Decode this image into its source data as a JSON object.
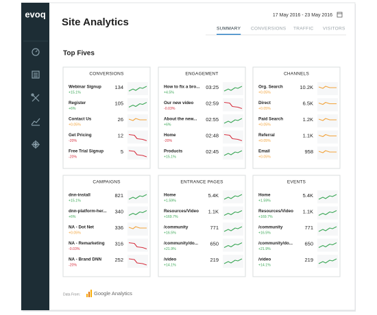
{
  "sidebar": {
    "logo": "evoq"
  },
  "header": {
    "title": "Site Analytics",
    "date_range": "17 May 2016 - 23 May 2016",
    "tabs": [
      "SUMMARY",
      "CONVERSIONS",
      "TRAFFIC",
      "VISITORS"
    ],
    "active_tab": 0
  },
  "section_title": "Top Fives",
  "panels": [
    {
      "title": "CONVERSIONS",
      "items": [
        {
          "name": "Webinar Signup",
          "value": "134",
          "change": "+15.1%",
          "color": "#3aa655"
        },
        {
          "name": "Register",
          "value": "105",
          "change": "+6%",
          "color": "#3aa655"
        },
        {
          "name": "Contact Us",
          "value": "26",
          "change": "+0.05%",
          "color": "#f2a33a"
        },
        {
          "name": "Get Pricing",
          "value": "12",
          "change": "-20%",
          "color": "#d6303f"
        },
        {
          "name": "Free Trial Signup",
          "value": "5",
          "change": "-20%",
          "color": "#d6303f"
        }
      ]
    },
    {
      "title": "ENGAGEMENT",
      "items": [
        {
          "name": "How to fix a bro...",
          "value": "03:25",
          "change": "+4.5%",
          "color": "#3aa655"
        },
        {
          "name": "Our new video",
          "value": "02:59",
          "change": "-0.03%",
          "color": "#d6303f"
        },
        {
          "name": "About the new...",
          "value": "02:55",
          "change": "+6%",
          "color": "#3aa655"
        },
        {
          "name": "Home",
          "value": "02:48",
          "change": "-20%",
          "color": "#d6303f"
        },
        {
          "name": "Products",
          "value": "02:45",
          "change": "+15.1%",
          "color": "#3aa655"
        }
      ]
    },
    {
      "title": "CHANNELS",
      "items": [
        {
          "name": "Org. Search",
          "value": "10.2K",
          "change": "+0.05%",
          "color": "#f2a33a"
        },
        {
          "name": "Direct",
          "value": "6.5K",
          "change": "+0.05%",
          "color": "#f2a33a"
        },
        {
          "name": "Paid Search",
          "value": "1.2K",
          "change": "+0.05%",
          "color": "#f2a33a"
        },
        {
          "name": "Referral",
          "value": "1.1K",
          "change": "+0.05%",
          "color": "#f2a33a"
        },
        {
          "name": "Email",
          "value": "958",
          "change": "+0.05%",
          "color": "#f2a33a"
        }
      ]
    },
    {
      "title": "CAMPAIGNS",
      "items": [
        {
          "name": "dnn-install",
          "value": "821",
          "change": "+15.1%",
          "color": "#3aa655"
        },
        {
          "name": "dnn-platform-her...",
          "value": "340",
          "change": "+6%",
          "color": "#3aa655"
        },
        {
          "name": "NA - Dot Net",
          "value": "336",
          "change": "+0.05%",
          "color": "#f2a33a"
        },
        {
          "name": "NA - Remarketing",
          "value": "316",
          "change": "-0.03%",
          "color": "#d6303f"
        },
        {
          "name": "NA - Brand DNN",
          "value": "252",
          "change": "-20%",
          "color": "#d6303f"
        }
      ]
    },
    {
      "title": "ENTRANCE PAGES",
      "items": [
        {
          "name": "Home",
          "value": "5.4K",
          "change": "+1.59%",
          "color": "#3aa655"
        },
        {
          "name": "Resources/Video",
          "value": "1.1K",
          "change": "+169.7%",
          "color": "#3aa655"
        },
        {
          "name": "/community",
          "value": "771",
          "change": "+16.5%",
          "color": "#3aa655"
        },
        {
          "name": "/community/do...",
          "value": "650",
          "change": "+21.9%",
          "color": "#3aa655"
        },
        {
          "name": "/video",
          "value": "219",
          "change": "+14.1%",
          "color": "#3aa655"
        }
      ]
    },
    {
      "title": "EVENTS",
      "items": [
        {
          "name": "Home",
          "value": "5.4K",
          "change": "+1.59%",
          "color": "#3aa655"
        },
        {
          "name": "Resources/Video",
          "value": "1.1K",
          "change": "+169.7%",
          "color": "#3aa655"
        },
        {
          "name": "/community",
          "value": "771",
          "change": "+16.5%",
          "color": "#3aa655"
        },
        {
          "name": "/community/do...",
          "value": "650",
          "change": "+21.9%",
          "color": "#3aa655"
        },
        {
          "name": "/video",
          "value": "219",
          "change": "+14.1%",
          "color": "#3aa655"
        }
      ]
    }
  ],
  "footer": {
    "label": "Data From:",
    "source": "Google Analytics"
  }
}
